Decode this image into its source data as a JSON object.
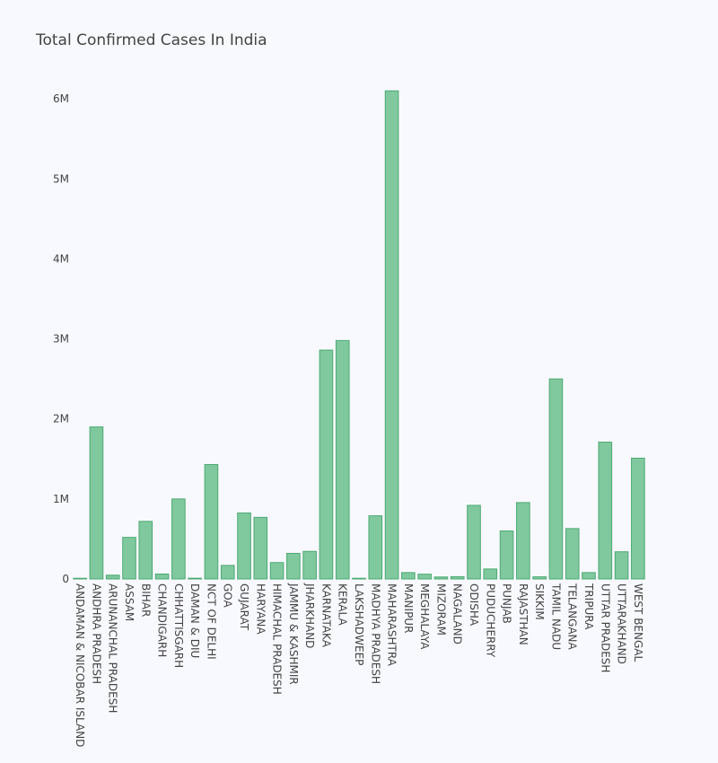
{
  "chart_data": {
    "type": "bar",
    "title": "Total Confirmed Cases In India",
    "xlabel": "",
    "ylabel": "",
    "ylim": [
      0,
      6450000
    ],
    "y_ticks": [
      {
        "value": 0,
        "label": "0"
      },
      {
        "value": 1000000,
        "label": "1M"
      },
      {
        "value": 2000000,
        "label": "2M"
      },
      {
        "value": 3000000,
        "label": "3M"
      },
      {
        "value": 4000000,
        "label": "4M"
      },
      {
        "value": 5000000,
        "label": "5M"
      },
      {
        "value": 6000000,
        "label": "6M"
      }
    ],
    "grid": false,
    "legend": "none",
    "categories": [
      "ANDAMAN & NICOBAR ISLAND",
      "ANDHRA PRADESH",
      "ARUNANCHAL PRADESH",
      "ASSAM",
      "BIHAR",
      "CHANDIGARH",
      "CHHATTISGARH",
      "DAMAN & DIU",
      "NCT OF DELHI",
      "GOA",
      "GUJARAT",
      "HARYANA",
      "HIMACHAL PRADESH",
      "JAMMU & KASHMIR",
      "JHARKHAND",
      "KARNATAKA",
      "KERALA",
      "LAKSHADWEEP",
      "MADHYA PRADESH",
      "MAHARASHTRA",
      "MANIPUR",
      "MEGHALAYA",
      "MIZORAM",
      "NAGALAND",
      "ODISHA",
      "PUDUCHERRY",
      "PUNJAB",
      "RAJASTHAN",
      "SIKKIM",
      "TAMIL NADU",
      "TELANGANA",
      "TRIPURA",
      "UTTAR PRADESH",
      "UTTARAKHAND",
      "WEST BENGAL"
    ],
    "values": [
      7500,
      1900000,
      48000,
      520000,
      720000,
      62000,
      1000000,
      10000,
      1430000,
      170000,
      825000,
      770000,
      205000,
      320000,
      345000,
      2860000,
      2980000,
      9000,
      790000,
      6100000,
      80000,
      60000,
      25000,
      29000,
      920000,
      125000,
      600000,
      955000,
      27000,
      2500000,
      630000,
      80000,
      1710000,
      340000,
      1510000
    ],
    "colors": {
      "bar_fill": "#80c89e",
      "bar_stroke": "#4daa73",
      "text": "#444444",
      "background": "#f8f9fe"
    }
  }
}
